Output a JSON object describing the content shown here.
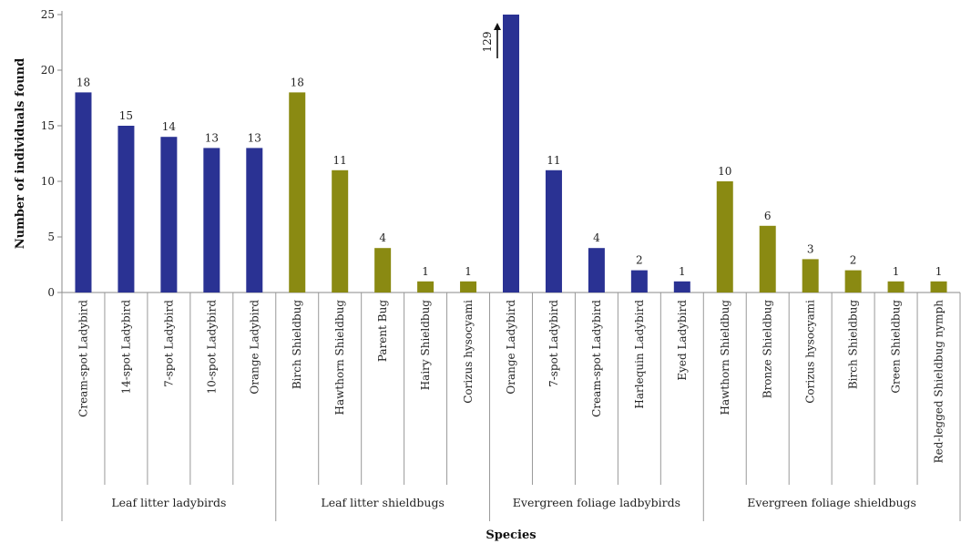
{
  "chart_data": {
    "type": "bar",
    "xlabel": "Species",
    "ylabel": "Number of individuals found",
    "ylim": [
      0,
      25
    ],
    "yticks": [
      0,
      5,
      10,
      15,
      20,
      25
    ],
    "categories": [
      "Cream-spot Ladybird",
      "14-spot Ladybird",
      "7-spot Ladybird",
      "10-spot Ladybird",
      "Orange Ladybird",
      "Birch Shieldbug",
      "Hawthorn Shieldbug",
      "Parent Bug",
      "Hairy Shieldbug",
      "Corizus hysocyami",
      "Orange Ladybird",
      "7-spot Ladybird",
      "Cream-spot Ladybird",
      "Harlequin Ladybird",
      "Eyed Ladybird",
      "Hawthorn Shieldbug",
      "Bronze Shieldbug",
      "Corizus hysocyami",
      "Birch Shieldbug",
      "Green Shieldbug",
      "Red-legged Shieldbug nymph"
    ],
    "values": [
      18,
      15,
      14,
      13,
      13,
      18,
      11,
      4,
      1,
      1,
      129,
      11,
      4,
      2,
      1,
      10,
      6,
      3,
      2,
      1,
      1
    ],
    "data_labels": [
      "18",
      "15",
      "14",
      "13",
      "13",
      "18",
      "11",
      "4",
      "1",
      "1",
      "129",
      "11",
      "4",
      "2",
      "1",
      "10",
      "6",
      "3",
      "2",
      "1",
      "1"
    ],
    "groups": [
      {
        "name": "Leaf litter ladybirds",
        "start": 0,
        "count": 5,
        "color": "#2a3293"
      },
      {
        "name": "Leaf litter shieldbugs",
        "start": 5,
        "count": 5,
        "color": "#8a8a12"
      },
      {
        "name": "Evergreen foliage ladbybirds",
        "start": 10,
        "count": 5,
        "color": "#2a3293"
      },
      {
        "name": "Evergreen foliage shieldbugs",
        "start": 15,
        "count": 6,
        "color": "#8a8a12"
      }
    ],
    "truncated_bar_index": 10,
    "grid": false,
    "legend": "none"
  }
}
